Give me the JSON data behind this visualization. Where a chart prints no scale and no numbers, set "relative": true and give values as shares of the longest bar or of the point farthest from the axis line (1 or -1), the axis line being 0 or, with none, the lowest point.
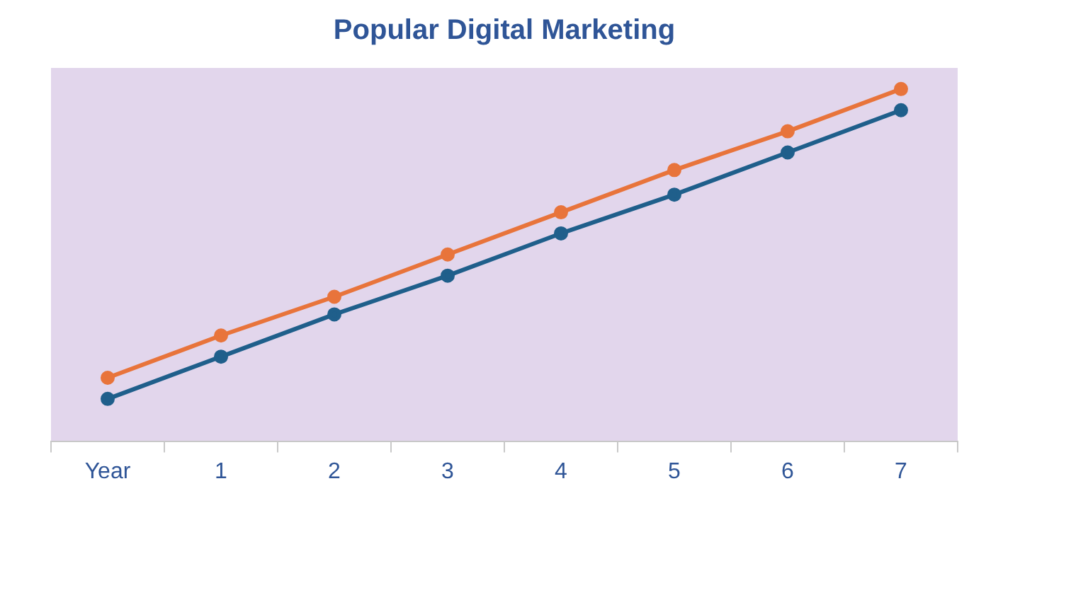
{
  "chart_data": {
    "type": "line",
    "title": "Popular Digital Marketing",
    "relative": true,
    "categories": [
      "Year",
      "1",
      "2",
      "3",
      "4",
      "5",
      "6",
      "7"
    ],
    "series": [
      {
        "color": "#e8743b",
        "values": [
          0.18,
          0.3,
          0.41,
          0.53,
          0.65,
          0.77,
          0.88,
          1
        ]
      },
      {
        "color": "#1f5f8b",
        "values": [
          0.12,
          0.24,
          0.36,
          0.47,
          0.59,
          0.7,
          0.82,
          0.94
        ]
      }
    ],
    "marker": "circle",
    "grid": false,
    "legend": false
  }
}
